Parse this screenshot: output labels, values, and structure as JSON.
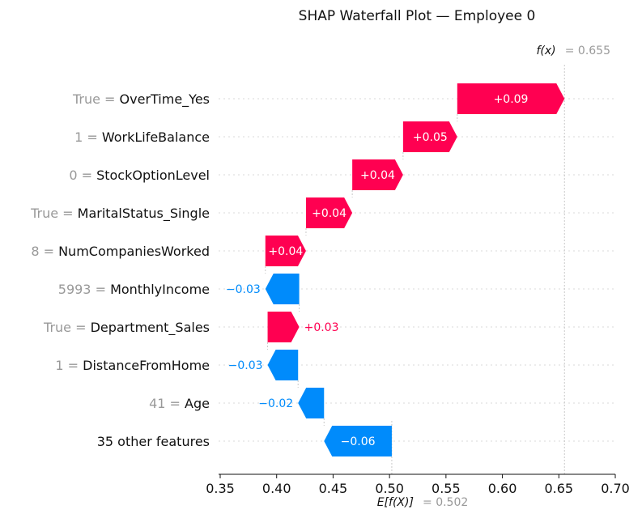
{
  "chart_data": {
    "type": "waterfall",
    "title": "SHAP Waterfall Plot — Employee 0",
    "xlim": [
      0.35,
      0.7
    ],
    "xticks": [
      "0.35",
      "0.40",
      "0.45",
      "0.50",
      "0.55",
      "0.60",
      "0.65",
      "0.70"
    ],
    "base_value": 0.502,
    "base_label": "E[f(X)]",
    "base_value_text": "= 0.502",
    "output_value": 0.655,
    "output_label": "f(x)",
    "output_value_text": "= 0.655",
    "grid": "horizontal dotted row guides",
    "colors": {
      "positive": "#ff0051",
      "negative": "#008bfb",
      "muted_text": "#999999",
      "axis": "#111111",
      "row_guides": "#d8d8d8"
    },
    "features": [
      {
        "name": "OverTime_Yes",
        "value": "True",
        "shap": 0.09,
        "label": "+0.09"
      },
      {
        "name": "WorkLifeBalance",
        "value": "1",
        "shap": 0.05,
        "label": "+0.05"
      },
      {
        "name": "StockOptionLevel",
        "value": "0",
        "shap": 0.04,
        "label": "+0.04"
      },
      {
        "name": "MaritalStatus_Single",
        "value": "True",
        "shap": 0.04,
        "label": "+0.04"
      },
      {
        "name": "NumCompaniesWorked",
        "value": "8",
        "shap": 0.04,
        "label": "+0.04"
      },
      {
        "name": "MonthlyIncome",
        "value": "5993",
        "shap": -0.03,
        "label": "−0.03"
      },
      {
        "name": "Department_Sales",
        "value": "True",
        "shap": 0.03,
        "label": "+0.03"
      },
      {
        "name": "DistanceFromHome",
        "value": "1",
        "shap": -0.03,
        "label": "−0.03"
      },
      {
        "name": "Age",
        "value": "41",
        "shap": -0.02,
        "label": "−0.02"
      },
      {
        "name": "35 other features",
        "value": "",
        "shap": -0.06,
        "label": "−0.06"
      }
    ],
    "bar_intervals": [
      [
        0.56,
        0.655
      ],
      [
        0.512,
        0.56
      ],
      [
        0.467,
        0.512
      ],
      [
        0.426,
        0.467
      ],
      [
        0.39,
        0.426
      ],
      [
        0.39,
        0.42
      ],
      [
        0.392,
        0.42
      ],
      [
        0.392,
        0.419
      ],
      [
        0.419,
        0.442
      ],
      [
        0.442,
        0.502
      ]
    ]
  }
}
